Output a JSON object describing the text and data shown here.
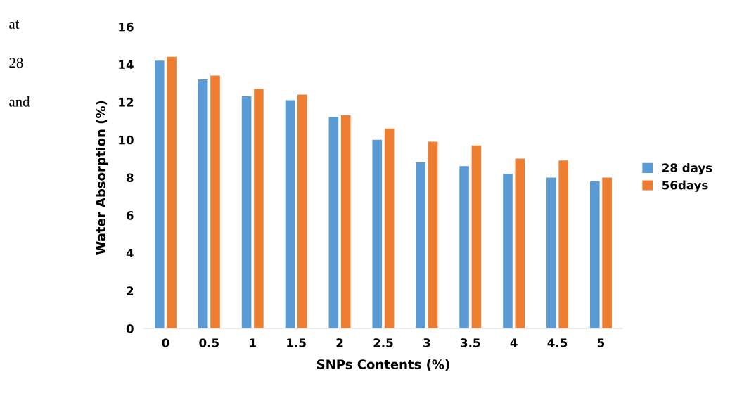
{
  "chart_data": {
    "type": "bar",
    "xlabel": "SNPs Contents (%)",
    "ylabel": "Water Absorption (%)",
    "categories": [
      "0",
      "0.5",
      "1",
      "1.5",
      "2",
      "2.5",
      "3",
      "3.5",
      "4",
      "4.5",
      "5"
    ],
    "series": [
      {
        "name": "28 days",
        "color": "#5b9bd5",
        "values": [
          14.2,
          13.2,
          12.3,
          12.1,
          11.2,
          10.0,
          8.8,
          8.6,
          8.2,
          8.0,
          7.8
        ]
      },
      {
        "name": "56days",
        "color": "#ed7d31",
        "values": [
          14.4,
          13.4,
          12.7,
          12.4,
          11.3,
          10.6,
          9.9,
          9.7,
          9.0,
          8.9,
          8.0
        ]
      }
    ],
    "ylim": [
      0,
      16
    ],
    "yticks": [
      0,
      2,
      4,
      6,
      8,
      10,
      12,
      14,
      16
    ],
    "grid": false,
    "legend": "right",
    "annotations": [
      "at",
      "28",
      "and"
    ]
  }
}
